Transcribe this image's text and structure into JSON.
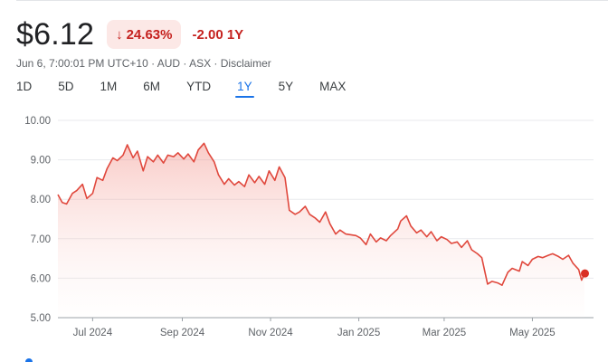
{
  "quote": {
    "price": "$6.12",
    "pct_change": "24.63%",
    "abs_change": "-2.00 1Y",
    "meta": "Jun 6, 7:00:01 PM UTC+10 · AUD · ASX · Disclaimer"
  },
  "colors": {
    "negative": "#c5221f",
    "negative_bg": "#fce8e6",
    "line": "#e0483d",
    "active_tab": "#1a73e8"
  },
  "icons": {
    "change_direction": "arrow-down-icon"
  },
  "tabs": [
    "1D",
    "5D",
    "1M",
    "6M",
    "YTD",
    "1Y",
    "5Y",
    "MAX"
  ],
  "active_tab": "1Y",
  "chart_data": {
    "type": "area",
    "ylim": [
      5.0,
      10.0
    ],
    "yticks": [
      "10.00",
      "9.00",
      "8.00",
      "7.00",
      "6.00",
      "5.00"
    ],
    "xticks": [
      "Jul 2024",
      "Sep 2024",
      "Nov 2024",
      "Jan 2025",
      "Mar 2025",
      "May 2025"
    ],
    "grid": true,
    "x": [
      "2024-06-07",
      "2024-06-10",
      "2024-06-13",
      "2024-06-17",
      "2024-06-20",
      "2024-06-24",
      "2024-06-27",
      "2024-07-01",
      "2024-07-04",
      "2024-07-08",
      "2024-07-11",
      "2024-07-15",
      "2024-07-18",
      "2024-07-22",
      "2024-07-25",
      "2024-07-29",
      "2024-08-01",
      "2024-08-05",
      "2024-08-08",
      "2024-08-12",
      "2024-08-15",
      "2024-08-19",
      "2024-08-22",
      "2024-08-26",
      "2024-08-29",
      "2024-09-02",
      "2024-09-05",
      "2024-09-09",
      "2024-09-12",
      "2024-09-16",
      "2024-09-19",
      "2024-09-23",
      "2024-09-26",
      "2024-09-30",
      "2024-10-03",
      "2024-10-07",
      "2024-10-10",
      "2024-10-14",
      "2024-10-17",
      "2024-10-21",
      "2024-10-24",
      "2024-10-28",
      "2024-10-31",
      "2024-11-04",
      "2024-11-07",
      "2024-11-11",
      "2024-11-14",
      "2024-11-18",
      "2024-11-21",
      "2024-11-25",
      "2024-11-28",
      "2024-12-02",
      "2024-12-05",
      "2024-12-09",
      "2024-12-12",
      "2024-12-16",
      "2024-12-19",
      "2024-12-23",
      "2024-12-30",
      "2025-01-02",
      "2025-01-06",
      "2025-01-09",
      "2025-01-13",
      "2025-01-16",
      "2025-01-20",
      "2025-01-23",
      "2025-01-28",
      "2025-01-30",
      "2025-02-03",
      "2025-02-06",
      "2025-02-10",
      "2025-02-13",
      "2025-02-17",
      "2025-02-20",
      "2025-02-24",
      "2025-02-27",
      "2025-03-03",
      "2025-03-06",
      "2025-03-10",
      "2025-03-13",
      "2025-03-17",
      "2025-03-20",
      "2025-03-24",
      "2025-03-27",
      "2025-03-31",
      "2025-04-03",
      "2025-04-07",
      "2025-04-10",
      "2025-04-14",
      "2025-04-17",
      "2025-04-22",
      "2025-04-24",
      "2025-04-28",
      "2025-05-01",
      "2025-05-05",
      "2025-05-08",
      "2025-05-12",
      "2025-05-15",
      "2025-05-19",
      "2025-05-22",
      "2025-05-26",
      "2025-05-29",
      "2025-06-02",
      "2025-06-04",
      "2025-06-06"
    ],
    "values": [
      8.12,
      7.92,
      7.88,
      8.15,
      8.22,
      8.38,
      8.02,
      8.15,
      8.55,
      8.48,
      8.78,
      9.05,
      8.98,
      9.12,
      9.38,
      9.05,
      9.22,
      8.72,
      9.08,
      8.95,
      9.12,
      8.92,
      9.12,
      9.08,
      9.18,
      9.02,
      9.15,
      8.95,
      9.25,
      9.42,
      9.18,
      8.95,
      8.62,
      8.38,
      8.52,
      8.36,
      8.45,
      8.32,
      8.62,
      8.42,
      8.58,
      8.38,
      8.72,
      8.48,
      8.82,
      8.55,
      7.72,
      7.62,
      7.68,
      7.82,
      7.62,
      7.52,
      7.42,
      7.68,
      7.38,
      7.12,
      7.22,
      7.12,
      7.08,
      7.02,
      6.85,
      7.12,
      6.92,
      7.02,
      6.95,
      7.08,
      7.25,
      7.45,
      7.58,
      7.32,
      7.15,
      7.22,
      7.05,
      7.18,
      6.95,
      7.05,
      6.98,
      6.88,
      6.92,
      6.78,
      6.95,
      6.72,
      6.62,
      6.52,
      5.85,
      5.92,
      5.88,
      5.82,
      6.15,
      6.25,
      6.18,
      6.42,
      6.32,
      6.48,
      6.55,
      6.52,
      6.58,
      6.62,
      6.55,
      6.48,
      6.58,
      6.38,
      6.22,
      5.95,
      6.12
    ]
  }
}
